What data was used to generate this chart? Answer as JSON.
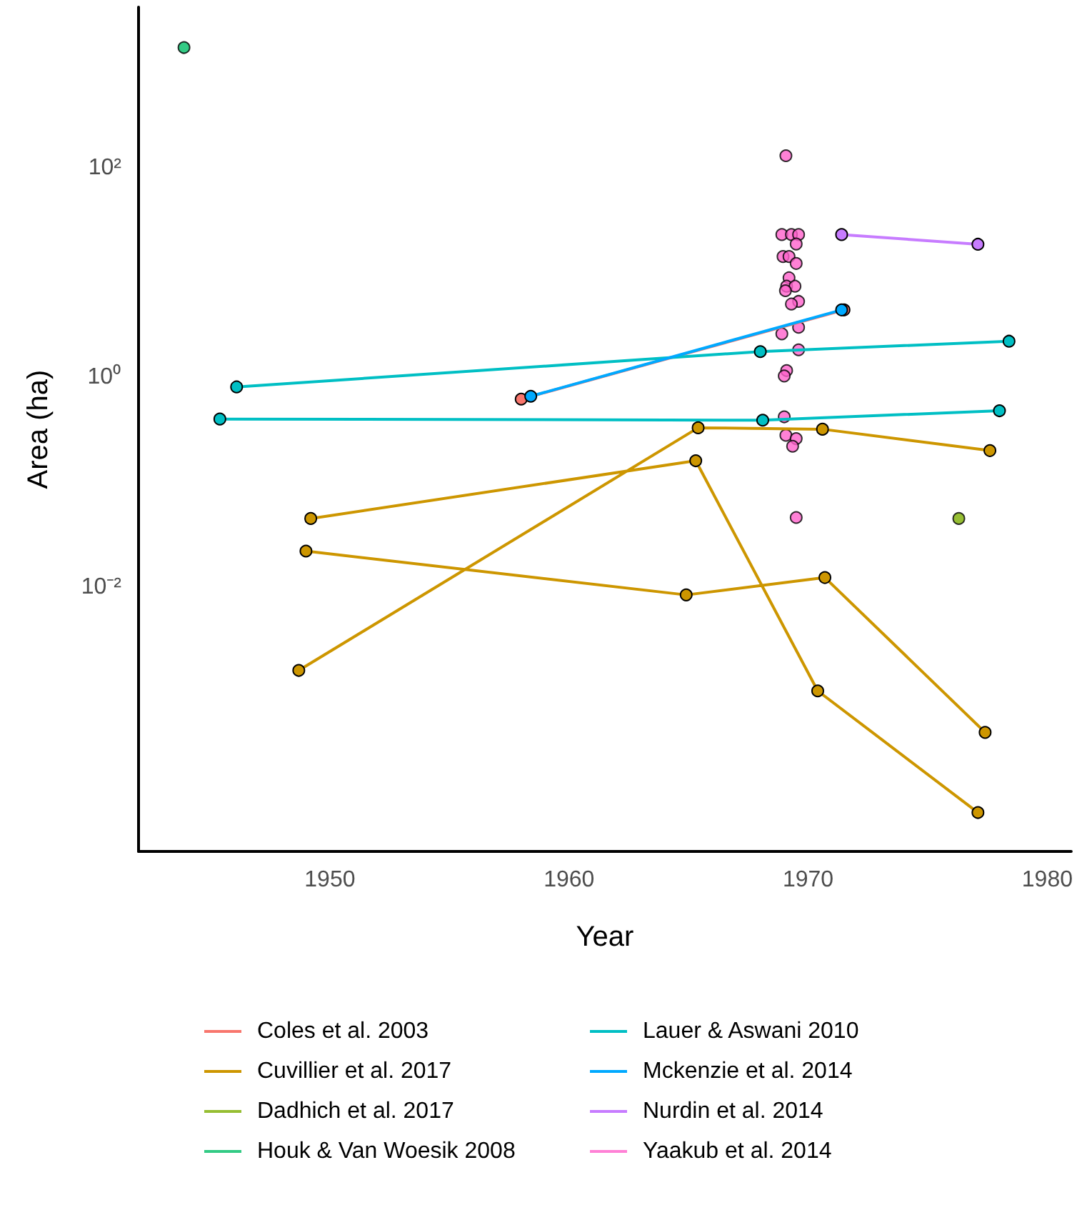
{
  "chart_data": {
    "type": "line",
    "xlabel": "Year",
    "ylabel": "Area (ha)",
    "log": "y",
    "xlim": [
      1942,
      1981
    ],
    "xticks": [
      1950,
      1960,
      1970,
      1980
    ],
    "ylim": [
      3e-05,
      3400
    ],
    "yticks": [
      {
        "value": 0.01,
        "label": "10⁻²"
      },
      {
        "value": 1,
        "label": "10⁰"
      },
      {
        "value": 100,
        "label": "10²"
      }
    ],
    "grid": false,
    "legend": "bottom",
    "marker": "circle",
    "line_style": "solid",
    "series": [
      {
        "name": "Coles et al. 2003",
        "color": "#f8766d",
        "x": [
          1958.0,
          1971.5
        ],
        "values": [
          0.62,
          4.4
        ]
      },
      {
        "name": "Cuvillier et al. 2017",
        "color": "#cd9600",
        "x": [
          1948.7,
          1965.4,
          1970.6,
          1977.6,
          null,
          1949.2,
          1965.3,
          1970.4,
          1977.1,
          null,
          1949.0,
          1964.9,
          1970.7,
          1977.4
        ],
        "values": [
          0.0016,
          0.33,
          0.32,
          0.2,
          null,
          0.045,
          0.16,
          0.00102,
          7.05e-05,
          null,
          0.022,
          0.0084,
          0.0123,
          0.00041
        ]
      },
      {
        "name": "Dadhich et al. 2017",
        "color": "#7cae00",
        "type": "scatter",
        "x": [
          1976.3
        ],
        "values": [
          0.045
        ]
      },
      {
        "name": "Houk & Van Woesik 2008",
        "color": "#00be67",
        "type": "scatter",
        "x": [
          1943.9
        ],
        "values": [
          1400
        ]
      },
      {
        "name": "Lauer & Aswani 2010",
        "color": "#00bfc4",
        "x": [
          1946.1,
          1968.0,
          1978.4,
          null,
          1945.4,
          1968.1,
          1978.0
        ],
        "values": [
          0.81,
          1.76,
          2.21,
          null,
          0.4,
          0.39,
          0.48
        ]
      },
      {
        "name": "Mckenzie et al. 2014",
        "color": "#00a9ff",
        "x": [
          1958.4,
          1971.4
        ],
        "values": [
          0.66,
          4.4
        ]
      },
      {
        "name": "Nurdin et al. 2014",
        "color": "#c77cff",
        "x": [
          1971.4,
          1977.1
        ],
        "values": [
          23,
          18.6
        ]
      },
      {
        "name": "Yaakub et al. 2014",
        "color": "#ff61cc",
        "type": "scatter",
        "x": [
          1969.07,
          1968.9,
          1969.3,
          1969.6,
          1969.5,
          1968.95,
          1969.2,
          1969.5,
          1969.2,
          1969.1,
          1969.45,
          1969.05,
          1969.6,
          1969.3,
          1969.6,
          1968.9,
          1969.6,
          1969.1,
          1969.0,
          1969.0,
          1969.07,
          1969.5,
          1969.35,
          1969.5
        ],
        "values": [
          130,
          23,
          23,
          23,
          18.7,
          14.2,
          14.2,
          12.2,
          8.9,
          7.4,
          7.4,
          6.7,
          5.3,
          5.0,
          3.0,
          2.6,
          1.83,
          1.16,
          1.03,
          0.42,
          0.28,
          0.26,
          0.22,
          0.046
        ]
      }
    ]
  }
}
